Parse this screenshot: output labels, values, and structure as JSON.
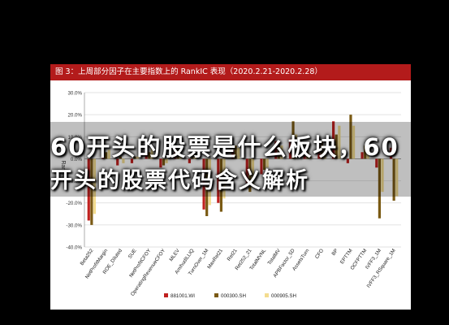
{
  "caption": "图 3：上周部分因子在主要指数上的 RankIC 表现（2020.2.21-2020.2.28）",
  "overlay": {
    "line1": "60开头的股票是什么板块，60",
    "line2": "开头的股票代码含义解析"
  },
  "chart_data": {
    "type": "bar",
    "title": "",
    "ylabel": "RankIC",
    "ylim": [
      -40,
      30
    ],
    "yticks": [
      -40,
      -30,
      -20,
      -10,
      0,
      10,
      20,
      30
    ],
    "ytick_labels": [
      "-40.0%",
      "-30.0%",
      "-20.0%",
      "-10.0%",
      "0.0%",
      "10.0%",
      "20.0%",
      "30.0%"
    ],
    "grid": true,
    "legend": "bottom",
    "categories": [
      "Beta252",
      "NetProfitMargin",
      "ROE_Diluted",
      "SUE",
      "NetProfitCFOY",
      "OperatingRevenueCFOY",
      "MLEV",
      "AmihudILLIQ",
      "TurnOver_1M",
      "MaxRet21",
      "Ret21",
      "Ret252_21",
      "TotalMVNL",
      "TotalMV",
      "APBFactor_5D",
      "AssetsTurn",
      "CFO",
      "BP",
      "EPTTM",
      "OCFPTTM",
      "IVFF3_1M",
      "IVFF3_RSquare_1M"
    ],
    "series": [
      {
        "name": "881001.WI",
        "color": "#c0211f",
        "values": [
          -28,
          4,
          -3,
          -2,
          4,
          -4,
          3,
          -2,
          -23,
          -20,
          4,
          -11,
          -7,
          8,
          9,
          2,
          6,
          17,
          -2,
          3,
          -4,
          5
        ]
      },
      {
        "name": "000300.SH",
        "color": "#7a5a14",
        "values": [
          -30,
          3,
          1,
          1,
          3,
          -3,
          5,
          2,
          -26,
          -24,
          6,
          -15,
          -5,
          7,
          17,
          3,
          8,
          11,
          20,
          6,
          -27,
          -19
        ]
      },
      {
        "name": "000905.SH",
        "color": "#f3dc8f",
        "values": [
          -25,
          4,
          -2,
          1,
          5,
          -2,
          2,
          3,
          -21,
          -18,
          5,
          -13,
          -4,
          6,
          11,
          1,
          6,
          15,
          15,
          6,
          -15,
          -17
        ]
      }
    ]
  }
}
